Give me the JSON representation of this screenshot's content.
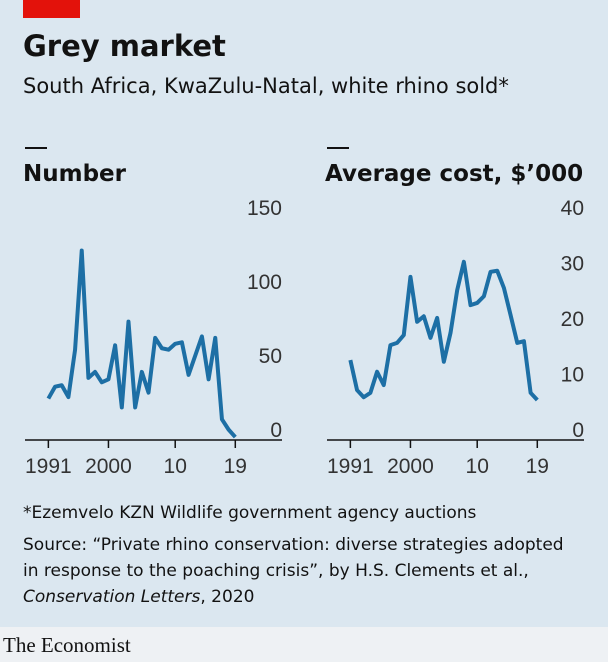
{
  "header": {
    "title": "Grey market",
    "subtitle": "South Africa, KwaZulu-Natal, white rhino sold*"
  },
  "chart_data": [
    {
      "type": "line",
      "title": "Number",
      "x": [
        1991,
        1992,
        1993,
        1994,
        1995,
        1996,
        1997,
        1998,
        1999,
        2000,
        2001,
        2002,
        2003,
        2004,
        2005,
        2006,
        2007,
        2008,
        2009,
        2010,
        2011,
        2012,
        2013,
        2014,
        2015,
        2016,
        2017,
        2018,
        2019
      ],
      "series": [
        {
          "color": "#1d6fa5",
          "values": [
            28,
            36,
            37,
            29,
            61,
            128,
            42,
            46,
            39,
            41,
            64,
            22,
            80,
            22,
            46,
            32,
            69,
            62,
            61,
            65,
            66,
            44,
            57,
            70,
            41,
            69,
            14,
            7,
            2
          ]
        }
      ],
      "xlim": [
        1987.5,
        2023
      ],
      "xticks": [
        1991,
        2000,
        {
          "value": 2010,
          "label": "10"
        },
        {
          "value": 2019,
          "label": "19"
        }
      ],
      "ylim": [
        0,
        150
      ],
      "yticks": [
        0,
        50,
        100,
        150
      ],
      "grid": false
    },
    {
      "type": "line",
      "title": "Average cost, $’000",
      "x": [
        1991,
        1992,
        1993,
        1994,
        1995,
        1996,
        1997,
        1998,
        1999,
        2000,
        2001,
        2002,
        2003,
        2004,
        2005,
        2006,
        2007,
        2008,
        2009,
        2010,
        2011,
        2012,
        2013,
        2014,
        2015,
        2016,
        2017,
        2018,
        2019
      ],
      "series": [
        {
          "color": "#1d6fa5",
          "values": [
            14.4,
            9,
            7.7,
            8.5,
            12.3,
            9.9,
            17.1,
            17.5,
            18.9,
            29.4,
            21.3,
            22.3,
            18.4,
            22,
            14.1,
            19.3,
            27,
            32.1,
            24.3,
            24.7,
            25.9,
            30.3,
            30.5,
            27.4,
            22.5,
            17.5,
            17.8,
            8.5,
            7.2
          ]
        }
      ],
      "xlim": [
        1987.5,
        2023
      ],
      "xticks": [
        1991,
        2000,
        {
          "value": 2010,
          "label": "10"
        },
        {
          "value": 2019,
          "label": "19"
        }
      ],
      "ylim": [
        0,
        40
      ],
      "yticks": [
        0,
        10,
        20,
        30,
        40
      ],
      "grid": false
    }
  ],
  "footnote": "*Ezemvelo KZN Wildlife government agency auctions",
  "source": {
    "line1": "Source: “Private rhino conservation: diverse strategies adopted",
    "line2": "in response to the poaching crisis”, by H.S. Clements et al.,",
    "journal": "Conservation Letters",
    "year": ", 2020"
  },
  "brand": "The Economist"
}
